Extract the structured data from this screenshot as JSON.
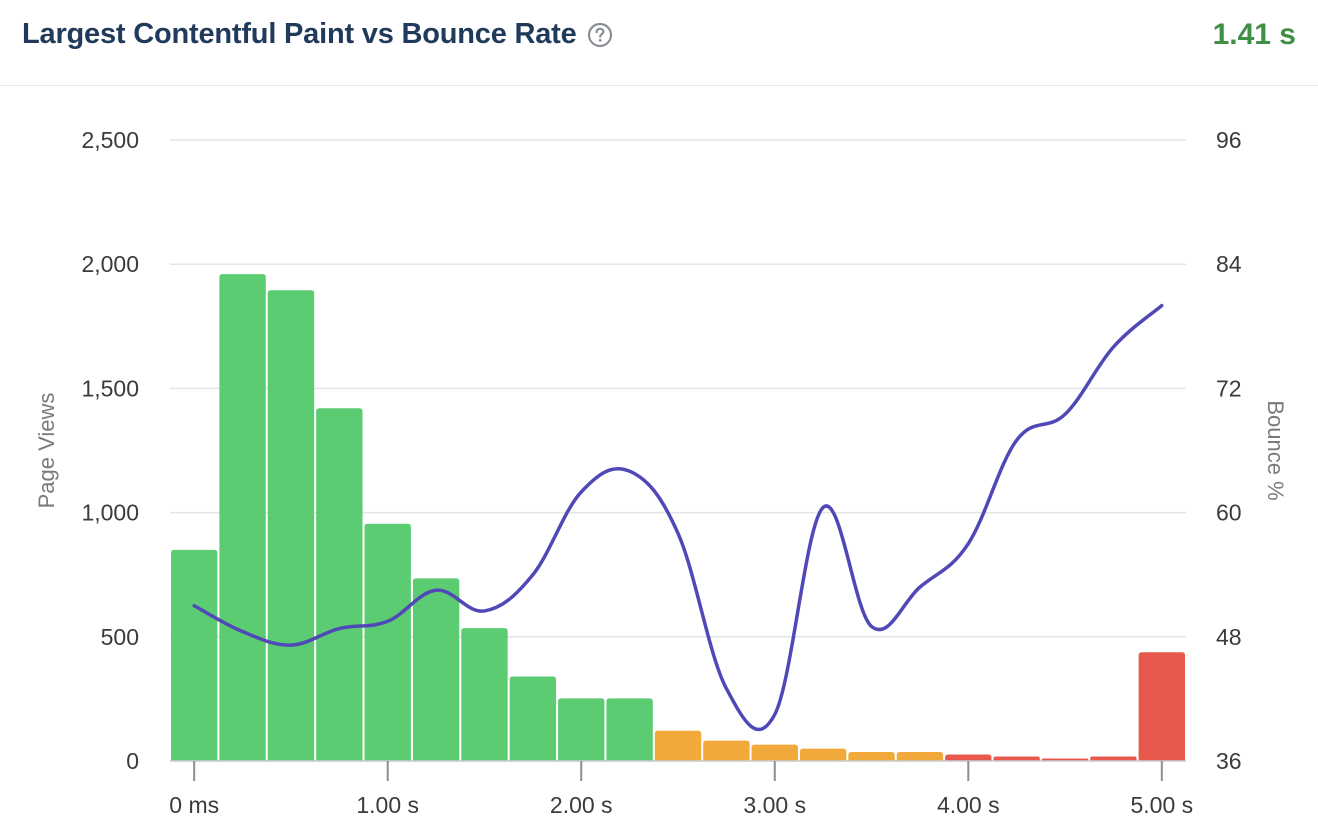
{
  "header": {
    "title": "Largest Contentful Paint vs Bounce Rate",
    "metric_value": "1.41 s",
    "metric_color": "#3f8f47",
    "help_icon": "question-circle-icon"
  },
  "chart_data": {
    "type": "bar",
    "title": "Largest Contentful Paint vs Bounce Rate",
    "ylabel": "Page Views",
    "y2label": "Bounce %",
    "ylim": [
      0,
      2500
    ],
    "y2lim": [
      36,
      96
    ],
    "xlim": [
      -0.125,
      5.125
    ],
    "grid": true,
    "y_ticks": [
      {
        "value": 0,
        "label": "0"
      },
      {
        "value": 500,
        "label": "500"
      },
      {
        "value": 1000,
        "label": "1,000"
      },
      {
        "value": 1500,
        "label": "1,500"
      },
      {
        "value": 2000,
        "label": "2,000"
      },
      {
        "value": 2500,
        "label": "2,500"
      }
    ],
    "y2_ticks": [
      {
        "value": 36,
        "label": "36"
      },
      {
        "value": 48,
        "label": "48"
      },
      {
        "value": 60,
        "label": "60"
      },
      {
        "value": 72,
        "label": "72"
      },
      {
        "value": 84,
        "label": "84"
      },
      {
        "value": 96,
        "label": "96"
      }
    ],
    "x_ticks": [
      {
        "value": 0,
        "label": "0 ms"
      },
      {
        "value": 1,
        "label": "1.00 s"
      },
      {
        "value": 2,
        "label": "2.00 s"
      },
      {
        "value": 3,
        "label": "3.00 s"
      },
      {
        "value": 4,
        "label": "4.00 s"
      },
      {
        "value": 5,
        "label": "5.00 s"
      }
    ],
    "status_colors": {
      "good": "#5ccc73",
      "needs_improvement": "#f2a93b",
      "poor": "#e9584d"
    },
    "bars": [
      {
        "x": 0.0,
        "value": 850,
        "status": "good"
      },
      {
        "x": 0.25,
        "value": 1960,
        "status": "good"
      },
      {
        "x": 0.5,
        "value": 1895,
        "status": "good"
      },
      {
        "x": 0.75,
        "value": 1420,
        "status": "good"
      },
      {
        "x": 1.0,
        "value": 955,
        "status": "good"
      },
      {
        "x": 1.25,
        "value": 735,
        "status": "good"
      },
      {
        "x": 1.5,
        "value": 535,
        "status": "good"
      },
      {
        "x": 1.75,
        "value": 340,
        "status": "good"
      },
      {
        "x": 2.0,
        "value": 252,
        "status": "good"
      },
      {
        "x": 2.25,
        "value": 252,
        "status": "good"
      },
      {
        "x": 2.5,
        "value": 122,
        "status": "needs_improvement"
      },
      {
        "x": 2.75,
        "value": 82,
        "status": "needs_improvement"
      },
      {
        "x": 3.0,
        "value": 66,
        "status": "needs_improvement"
      },
      {
        "x": 3.25,
        "value": 50,
        "status": "needs_improvement"
      },
      {
        "x": 3.5,
        "value": 36,
        "status": "needs_improvement"
      },
      {
        "x": 3.75,
        "value": 36,
        "status": "needs_improvement"
      },
      {
        "x": 4.0,
        "value": 26,
        "status": "poor"
      },
      {
        "x": 4.25,
        "value": 18,
        "status": "poor"
      },
      {
        "x": 4.5,
        "value": 10,
        "status": "poor"
      },
      {
        "x": 4.75,
        "value": 18,
        "status": "poor"
      },
      {
        "x": 5.0,
        "value": 438,
        "status": "poor"
      }
    ],
    "line": {
      "name": "Bounce %",
      "color": "#5148b8",
      "points": [
        {
          "x": 0.0,
          "y": 51.0
        },
        {
          "x": 0.25,
          "y": 48.5
        },
        {
          "x": 0.5,
          "y": 47.2
        },
        {
          "x": 0.75,
          "y": 48.8
        },
        {
          "x": 1.0,
          "y": 49.5
        },
        {
          "x": 1.25,
          "y": 52.5
        },
        {
          "x": 1.5,
          "y": 50.5
        },
        {
          "x": 1.75,
          "y": 54.0
        },
        {
          "x": 2.0,
          "y": 62.0
        },
        {
          "x": 2.25,
          "y": 64.0
        },
        {
          "x": 2.5,
          "y": 58.0
        },
        {
          "x": 2.75,
          "y": 43.0
        },
        {
          "x": 3.0,
          "y": 40.5
        },
        {
          "x": 3.25,
          "y": 60.5
        },
        {
          "x": 3.5,
          "y": 49.0
        },
        {
          "x": 3.75,
          "y": 52.8
        },
        {
          "x": 4.0,
          "y": 57.0
        },
        {
          "x": 4.25,
          "y": 67.0
        },
        {
          "x": 4.5,
          "y": 69.5
        },
        {
          "x": 4.75,
          "y": 76.0
        },
        {
          "x": 5.0,
          "y": 80.0
        }
      ]
    }
  }
}
